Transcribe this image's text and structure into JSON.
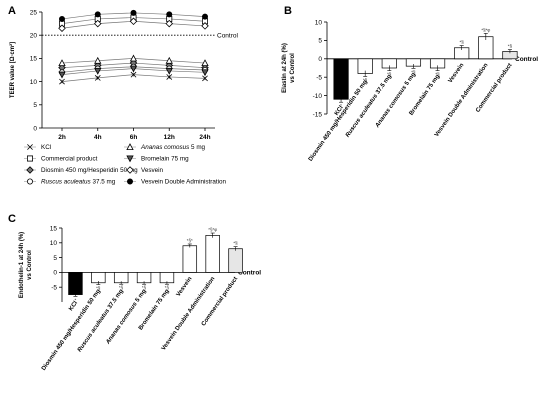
{
  "chart_data": [
    {
      "panel": "A",
      "type": "line",
      "ylabel": "TEER value [Ω·cm²]",
      "ylim": [
        0,
        25
      ],
      "yticks": [
        0,
        5,
        10,
        15,
        20,
        25
      ],
      "categories": [
        "2h",
        "4h",
        "6h",
        "12h",
        "24h"
      ],
      "reference_line": {
        "value": 20,
        "label": "Control"
      },
      "series": [
        {
          "name": "KCl",
          "marker": "x",
          "values": [
            10,
            10.8,
            11.5,
            11,
            10.7
          ]
        },
        {
          "name": "Commercial product",
          "marker": "square",
          "values": [
            22.5,
            23.5,
            23.8,
            23.5,
            23
          ]
        },
        {
          "name": "Diosmin 450 mg/Hesperidin 50 mg",
          "marker": "diamond",
          "values": [
            13,
            13.5,
            14,
            13.5,
            13
          ]
        },
        {
          "name": "Ruscus aculeatus 37.5 mg",
          "marker": "circle",
          "values": [
            12,
            12.8,
            13.2,
            12.8,
            12.5
          ]
        },
        {
          "name": "Ananas comosus 5 mg",
          "marker": "triangle-up",
          "values": [
            14,
            14.5,
            15,
            14.5,
            14
          ]
        },
        {
          "name": "Bromelain 75 mg",
          "marker": "triangle-down",
          "values": [
            11.5,
            12.3,
            12.8,
            12.3,
            12
          ]
        },
        {
          "name": "Vesvein",
          "marker": "diamond-open",
          "values": [
            21.5,
            22.5,
            23,
            22.5,
            22
          ]
        },
        {
          "name": "Vesvein Double Administration",
          "marker": "circle-filled",
          "values": [
            23.5,
            24.5,
            24.8,
            24.5,
            24
          ]
        }
      ],
      "legend": [
        "KCl",
        "Commercial product",
        "Diosmin 450 mg/Hesperidin 50 mg",
        "Ruscus aculeatus 37.5 mg",
        "Ananas comosus 5 mg",
        "Bromelain 75 mg",
        "Vesvein",
        "Vesvein Double Administration"
      ],
      "legend_placement": "below"
    },
    {
      "panel": "B",
      "type": "bar",
      "ylabel": "Elastin at 24h (%)\nvs Control",
      "ylim": [
        -15,
        10
      ],
      "yticks": [
        -15,
        -10,
        -5,
        0,
        5,
        10
      ],
      "baseline_label": "Control",
      "categories": [
        "KCl",
        "Diosmin 450 mg/Hesperidin 50 mg",
        "Ruscus aculeatus 37.5 mg",
        "Ananas comosus 5 mg",
        "Bromelain 75 mg",
        "Vesvein",
        "Vesvein Double Administration",
        "Commercial product"
      ],
      "values": [
        -11,
        -4,
        -2.5,
        -2,
        -2.5,
        3,
        6,
        2
      ],
      "errors": [
        0.8,
        0.8,
        0.7,
        0.6,
        0.7,
        0.6,
        0.9,
        0.5
      ],
      "fills": [
        "#000000",
        "#ffffff",
        "#ffffff",
        "#ffffff",
        "#ffffff",
        "#ffffff",
        "#ffffff",
        "#e6e6e6"
      ],
      "annotations": [
        "*",
        "*§",
        "*§",
        "*§",
        "*§",
        "*§",
        "*§*φ",
        "*§"
      ]
    },
    {
      "panel": "C",
      "type": "bar",
      "ylabel": "Endothelin-1 at 24h (%)\nvs Control",
      "ylim": [
        -10,
        15
      ],
      "yticks": [
        -5,
        0,
        5,
        10,
        15
      ],
      "baseline_label": "Control",
      "categories": [
        "KCl",
        "Diosmin 450 mg/Hesperidin 50 mg",
        "Ruscus aculeatus 37.5 mg",
        "Ananas comosus 5 mg",
        "Bromelain 75 mg",
        "Vesvein",
        "Vesvein Double Administration",
        "Commercial product"
      ],
      "values": [
        -7.5,
        -3.5,
        -3.5,
        -3.5,
        -3.5,
        9,
        12.5,
        8
      ],
      "errors": [
        0.6,
        0.6,
        0.5,
        0.5,
        0.5,
        0.6,
        0.8,
        0.7
      ],
      "fills": [
        "#000000",
        "#ffffff",
        "#ffffff",
        "#ffffff",
        "#ffffff",
        "#ffffff",
        "#ffffff",
        "#e6e6e6"
      ],
      "annotations": [
        "*",
        "*§",
        "*§",
        "*§",
        "*§",
        "*§*",
        "*§*φ",
        "*§"
      ]
    }
  ],
  "italic_prefixes": [
    "Ruscus aculeatus",
    "Ananas comosus"
  ]
}
